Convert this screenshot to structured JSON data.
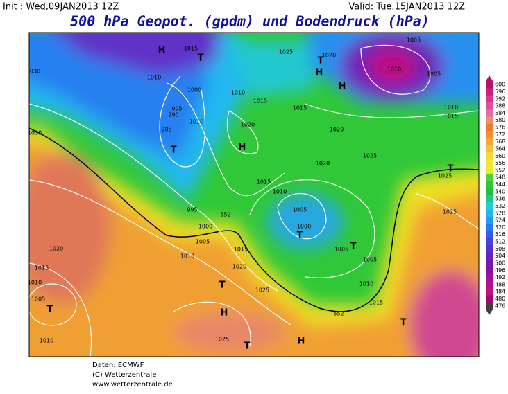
{
  "header": {
    "init": "Init : Wed,09JAN2013 12Z",
    "valid": "Valid: Tue,15JAN2013 12Z",
    "title": "500 hPa Geopot. (gpdm) und Bodendruck (hPa)"
  },
  "colorbar": {
    "levels": [
      600,
      596,
      592,
      588,
      584,
      580,
      576,
      572,
      568,
      564,
      560,
      556,
      552,
      548,
      544,
      540,
      536,
      532,
      528,
      524,
      520,
      516,
      512,
      508,
      504,
      500,
      496,
      492,
      488,
      484,
      480,
      476
    ],
    "colors": [
      "#b8106e",
      "#c8207c",
      "#d8388c",
      "#e0509a",
      "#e070a0",
      "#e89070",
      "#f07830",
      "#f09030",
      "#f0a838",
      "#f8c040",
      "#f8d838",
      "#f0e830",
      "#e8f020",
      "#50d040",
      "#30c830",
      "#20c040",
      "#20c890",
      "#20d0d0",
      "#20b8f0",
      "#2898f0",
      "#2878f0",
      "#3858f0",
      "#4840e0",
      "#5830d0",
      "#6820c0",
      "#7818b0",
      "#8810a0",
      "#a01098",
      "#b01090",
      "#c01080",
      "#a00870",
      "#404040"
    ]
  },
  "map": {
    "isobars": [
      "1030",
      "1015",
      "1025",
      "1020",
      "1005",
      "1010",
      "1005",
      "1010",
      "1015",
      "1010",
      "1000",
      "995",
      "990",
      "985",
      "1010",
      "1010",
      "1015",
      "1020",
      "1015",
      "1020",
      "1025",
      "1020",
      "1015",
      "1010",
      "1005",
      "1000",
      "995",
      "1000",
      "1005",
      "1010",
      "1015",
      "1020",
      "1025",
      "1020",
      "1015",
      "1010",
      "1005",
      "1010",
      "1025",
      "1005",
      "1005",
      "1010",
      "1015",
      "1025",
      "1025",
      "1030",
      "552",
      "552"
    ],
    "centers": [
      "H",
      "T",
      "H",
      "T",
      "T",
      "H",
      "T",
      "H",
      "T",
      "H",
      "T",
      "T",
      "T",
      "T",
      "H",
      "T"
    ]
  },
  "footer": [
    "Daten: ECMWF",
    "(C) Wetterzentrale",
    "www.wetterzentrale.de"
  ]
}
